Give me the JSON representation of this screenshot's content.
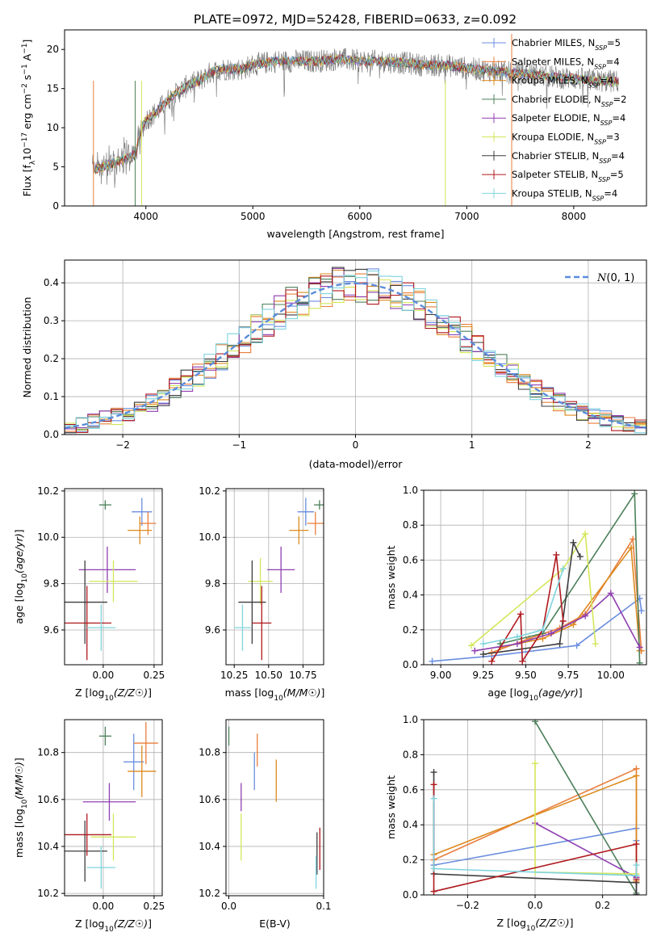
{
  "figure": {
    "title": "PLATE=0972, MJD=52428, FIBERID=0633, z=0.092"
  },
  "series_colors": [
    "#6b8ee0",
    "#e97e3c",
    "#dd8a1e",
    "#4c7f5a",
    "#8f3fb0",
    "#d4e65a",
    "#3d3d3d",
    "#b0191e",
    "#7fd4de"
  ],
  "chart_data": [
    {
      "type": "line",
      "xlabel": "wavelength [Angstrom, rest frame]",
      "ylabel": "Flux [f",
      "ylabel_rest": "10",
      "ylabel_units": "erg cm",
      "xlim": [
        3240,
        8680
      ],
      "ylim": [
        0,
        22.5
      ],
      "xticks": [
        4000,
        5000,
        6000,
        7000,
        8000
      ],
      "yticks": [
        0,
        5,
        10,
        15,
        20
      ],
      "grid": false,
      "legend_position": "right",
      "series": [
        {
          "name": "Chabrier MILES",
          "nssp": "5"
        },
        {
          "name": "Salpeter MILES",
          "nssp": "4"
        },
        {
          "name": "Kroupa MILES",
          "nssp": "4"
        },
        {
          "name": "Chabrier ELODIE",
          "nssp": "2"
        },
        {
          "name": "Salpeter ELODIE",
          "nssp": "4"
        },
        {
          "name": "Kroupa ELODIE",
          "nssp": "3"
        },
        {
          "name": "Chabrier STELIB",
          "nssp": "4"
        },
        {
          "name": "Salpeter STELIB",
          "nssp": "5"
        },
        {
          "name": "Kroupa STELIB",
          "nssp": "4"
        }
      ],
      "continuum": {
        "x": [
          3500,
          3600,
          3700,
          3800,
          3900,
          3950,
          4000,
          4100,
          4200,
          4300,
          4400,
          4500,
          4600,
          4700,
          4800,
          4900,
          5000,
          5200,
          5400,
          5600,
          5800,
          6000,
          6200,
          6400,
          6600,
          6800,
          7000,
          7200,
          7400,
          7600,
          7800,
          8000,
          8200,
          8400
        ],
        "y": [
          4.5,
          5.0,
          5.5,
          6.0,
          6.5,
          9.5,
          11.0,
          12.0,
          13.5,
          14.5,
          15.5,
          16.0,
          17.0,
          17.5,
          17.5,
          17.5,
          18.0,
          18.5,
          18.5,
          18.5,
          18.8,
          18.5,
          18.5,
          18.3,
          18.0,
          18.0,
          17.6,
          17.3,
          17.0,
          16.8,
          16.5,
          16.3,
          16.0,
          15.9
        ]
      }
    },
    {
      "type": "histogram",
      "xlabel": "(data-model)/error",
      "ylabel": "Normed distribution",
      "xlim": [
        -2.5,
        2.5
      ],
      "ylim": [
        0,
        0.46
      ],
      "xticks": [
        -2,
        -1,
        0,
        1,
        2
      ],
      "yticks": [
        0.0,
        0.1,
        0.2,
        0.3,
        0.4
      ],
      "grid": true,
      "legend_position": "top-right",
      "reference_curve": "normal(0,1)",
      "legend_label": "N(0,1)",
      "bin_edges_start": -2.5,
      "bin_width": 0.1
    },
    {
      "type": "scatter",
      "xlabel": "Z [log10(Z/Z☉)]",
      "ylabel": "age  [log10(age/yr)]",
      "xlim": [
        -0.19,
        0.29
      ],
      "ylim": [
        9.45,
        10.21
      ],
      "xticks": [
        0.0,
        0.25
      ],
      "yticks": [
        9.6,
        9.8,
        10.0,
        10.2
      ],
      "grid": true,
      "points": [
        {
          "series": "Chabrier MILES",
          "x": 0.19,
          "xerr": 0.05,
          "y": 10.11,
          "yerr": 0.06
        },
        {
          "series": "Salpeter MILES",
          "x": 0.22,
          "xerr": 0.04,
          "y": 10.06,
          "yerr": 0.05
        },
        {
          "series": "Kroupa MILES",
          "x": 0.18,
          "xerr": 0.06,
          "y": 10.03,
          "yerr": 0.06
        },
        {
          "series": "Chabrier ELODIE",
          "x": 0.01,
          "xerr": 0.03,
          "y": 10.14,
          "yerr": 0.02
        },
        {
          "series": "Salpeter ELODIE",
          "x": 0.02,
          "xerr": 0.14,
          "y": 9.86,
          "yerr": 0.1
        },
        {
          "series": "Kroupa ELODIE",
          "x": 0.05,
          "xerr": 0.12,
          "y": 9.81,
          "yerr": 0.09
        },
        {
          "series": "Chabrier STELIB",
          "x": -0.09,
          "xerr": 0.11,
          "y": 9.72,
          "yerr": 0.18
        },
        {
          "series": "Salpeter STELIB",
          "x": -0.08,
          "xerr": 0.12,
          "y": 9.63,
          "yerr": 0.16
        },
        {
          "series": "Kroupa STELIB",
          "x": -0.01,
          "xerr": 0.07,
          "y": 9.61,
          "yerr": 0.1
        }
      ]
    },
    {
      "type": "scatter",
      "xlabel": "mass [log10(M/M☉)]",
      "ylabel": "",
      "xlim": [
        10.19,
        10.9
      ],
      "ylim": [
        9.45,
        10.21
      ],
      "xticks": [
        10.25,
        10.5,
        10.75
      ],
      "yticks": [
        9.6,
        9.8,
        10.0,
        10.2
      ],
      "grid": true,
      "points": [
        {
          "series": "Chabrier MILES",
          "x": 10.77,
          "xerr": 0.06,
          "y": 10.11,
          "yerr": 0.06
        },
        {
          "series": "Salpeter MILES",
          "x": 10.84,
          "xerr": 0.06,
          "y": 10.06,
          "yerr": 0.05
        },
        {
          "series": "Kroupa MILES",
          "x": 10.72,
          "xerr": 0.07,
          "y": 10.03,
          "yerr": 0.06
        },
        {
          "series": "Chabrier ELODIE",
          "x": 10.87,
          "xerr": 0.04,
          "y": 10.14,
          "yerr": 0.02
        },
        {
          "series": "Salpeter ELODIE",
          "x": 10.59,
          "xerr": 0.1,
          "y": 9.86,
          "yerr": 0.1
        },
        {
          "series": "Kroupa ELODIE",
          "x": 10.44,
          "xerr": 0.09,
          "y": 9.81,
          "yerr": 0.1
        },
        {
          "series": "Chabrier STELIB",
          "x": 10.38,
          "xerr": 0.1,
          "y": 9.72,
          "yerr": 0.18
        },
        {
          "series": "Salpeter STELIB",
          "x": 10.45,
          "xerr": 0.07,
          "y": 9.63,
          "yerr": 0.16
        },
        {
          "series": "Kroupa STELIB",
          "x": 10.31,
          "xerr": 0.06,
          "y": 9.61,
          "yerr": 0.1
        }
      ]
    },
    {
      "type": "line",
      "xlabel": "age  [log10(age/yr)]",
      "ylabel": "mass weight",
      "xlim": [
        8.9,
        10.21
      ],
      "ylim": [
        0,
        1
      ],
      "xticks": [
        9.0,
        9.25,
        9.5,
        9.75,
        10.0
      ],
      "yticks": [
        0.0,
        0.2,
        0.4,
        0.6,
        0.8,
        1.0
      ],
      "grid": true,
      "series": [
        {
          "name": "Chabrier MILES",
          "x": [
            8.95,
            9.3,
            9.8,
            10.17,
            10.18
          ],
          "y": [
            0.02,
            0.05,
            0.11,
            0.38,
            0.31
          ]
        },
        {
          "name": "Salpeter MILES",
          "x": [
            9.3,
            9.52,
            9.7,
            9.85,
            10.13,
            10.18
          ],
          "y": [
            0.07,
            0.15,
            0.21,
            0.29,
            0.72,
            0.08
          ]
        },
        {
          "name": "Kroupa MILES",
          "x": [
            9.35,
            9.6,
            9.78,
            10.12,
            10.17
          ],
          "y": [
            0.1,
            0.15,
            0.23,
            0.67,
            0.08
          ]
        },
        {
          "name": "Chabrier ELODIE",
          "x": [
            9.35,
            9.6,
            10.14,
            10.17
          ],
          "y": [
            0.12,
            0.18,
            0.98,
            0.01
          ]
        },
        {
          "name": "Salpeter ELODIE",
          "x": [
            9.2,
            9.45,
            9.65,
            9.85,
            10.0,
            10.17
          ],
          "y": [
            0.08,
            0.12,
            0.18,
            0.28,
            0.41,
            0.1
          ]
        },
        {
          "name": "Kroupa ELODIE",
          "x": [
            9.18,
            9.72,
            9.85,
            9.91
          ],
          "y": [
            0.11,
            0.55,
            0.75,
            0.12
          ]
        },
        {
          "name": "Chabrier STELIB",
          "x": [
            9.25,
            9.7,
            9.78,
            9.82
          ],
          "y": [
            0.06,
            0.12,
            0.7,
            0.62
          ]
        },
        {
          "name": "Salpeter STELIB",
          "x": [
            9.3,
            9.47,
            9.48,
            9.6,
            9.68,
            9.72
          ],
          "y": [
            0.02,
            0.29,
            0.02,
            0.2,
            0.63,
            0.25
          ]
        },
        {
          "name": "Kroupa STELIB",
          "x": [
            9.25,
            9.45,
            9.6,
            9.72
          ],
          "y": [
            0.12,
            0.16,
            0.2,
            0.55
          ]
        }
      ]
    },
    {
      "type": "scatter",
      "xlabel": "Z [log10(Z/Z☉)]",
      "ylabel": "mass [log10(M/M☉)]",
      "xlim": [
        -0.19,
        0.29
      ],
      "ylim": [
        10.19,
        10.94
      ],
      "xticks": [
        0.0,
        0.25
      ],
      "yticks": [
        10.2,
        10.4,
        10.6,
        10.8
      ],
      "grid": true,
      "points": [
        {
          "series": "Chabrier MILES",
          "x": 0.15,
          "xerr": 0.05,
          "y": 10.76,
          "yerr": 0.12
        },
        {
          "series": "Salpeter MILES",
          "x": 0.21,
          "xerr": 0.06,
          "y": 10.84,
          "yerr": 0.09
        },
        {
          "series": "Kroupa MILES",
          "x": 0.19,
          "xerr": 0.07,
          "y": 10.72,
          "yerr": 0.11
        },
        {
          "series": "Chabrier ELODIE",
          "x": 0.01,
          "xerr": 0.03,
          "y": 10.87,
          "yerr": 0.04
        },
        {
          "series": "Salpeter ELODIE",
          "x": 0.03,
          "xerr": 0.13,
          "y": 10.59,
          "yerr": 0.08
        },
        {
          "series": "Kroupa ELODIE",
          "x": 0.05,
          "xerr": 0.11,
          "y": 10.44,
          "yerr": 0.1
        },
        {
          "series": "Chabrier STELIB",
          "x": -0.09,
          "xerr": 0.11,
          "y": 10.38,
          "yerr": 0.13
        },
        {
          "series": "Salpeter STELIB",
          "x": -0.08,
          "xerr": 0.12,
          "y": 10.45,
          "yerr": 0.09
        },
        {
          "series": "Kroupa STELIB",
          "x": -0.01,
          "xerr": 0.07,
          "y": 10.31,
          "yerr": 0.09
        }
      ]
    },
    {
      "type": "scatter",
      "xlabel": "E(B-V)",
      "ylabel": "",
      "xlim": [
        -0.003,
        0.1
      ],
      "ylim": [
        10.19,
        10.94
      ],
      "xticks": [
        0.0,
        0.1
      ],
      "yticks": [
        10.2,
        10.4,
        10.6,
        10.8
      ],
      "grid": true,
      "points": [
        {
          "series": "Chabrier MILES",
          "x": 0.027,
          "xerr": 0,
          "y": 10.72,
          "yerr": 0.08
        },
        {
          "series": "Salpeter MILES",
          "x": 0.03,
          "xerr": 0,
          "y": 10.81,
          "yerr": 0.07
        },
        {
          "series": "Kroupa MILES",
          "x": 0.05,
          "xerr": 0,
          "y": 10.68,
          "yerr": 0.09
        },
        {
          "series": "Chabrier ELODIE",
          "x": 0.0,
          "xerr": 0,
          "y": 10.87,
          "yerr": 0.04
        },
        {
          "series": "Salpeter ELODIE",
          "x": 0.013,
          "xerr": 0,
          "y": 10.61,
          "yerr": 0.06
        },
        {
          "series": "Kroupa ELODIE",
          "x": 0.013,
          "xerr": 0,
          "y": 10.44,
          "yerr": 0.1
        },
        {
          "series": "Chabrier STELIB",
          "x": 0.093,
          "xerr": 0,
          "y": 10.37,
          "yerr": 0.09
        },
        {
          "series": "Salpeter STELIB",
          "x": 0.096,
          "xerr": 0,
          "y": 10.39,
          "yerr": 0.09
        },
        {
          "series": "Kroupa STELIB",
          "x": 0.092,
          "xerr": 0,
          "y": 10.29,
          "yerr": 0.07
        }
      ]
    },
    {
      "type": "line",
      "xlabel": "Z [log10(Z/Z☉)]",
      "ylabel": "mass weight",
      "xlim": [
        -0.33,
        0.33
      ],
      "ylim": [
        0,
        1
      ],
      "xticks": [
        -0.2,
        0.0,
        0.2
      ],
      "yticks": [
        0.0,
        0.2,
        0.4,
        0.6,
        0.8,
        1.0
      ],
      "grid": true,
      "series": [
        {
          "name": "Chabrier MILES",
          "x": [
            -0.3,
            0.3,
            0.3
          ],
          "y": [
            0.17,
            0.38,
            0.31
          ]
        },
        {
          "name": "Salpeter MILES",
          "x": [
            -0.3,
            0.3,
            0.3
          ],
          "y": [
            0.2,
            0.72,
            0.08
          ]
        },
        {
          "name": "Kroupa MILES",
          "x": [
            -0.3,
            0.3,
            0.3
          ],
          "y": [
            0.23,
            0.68,
            0.08
          ]
        },
        {
          "name": "Chabrier ELODIE",
          "x": [
            0.0,
            0.3,
            0.3
          ],
          "y": [
            0.99,
            0.01,
            0.0
          ]
        },
        {
          "name": "Salpeter ELODIE",
          "x": [
            0.0,
            0.3,
            0.3
          ],
          "y": [
            0.41,
            0.1,
            0.0
          ]
        },
        {
          "name": "Kroupa ELODIE",
          "x": [
            0.0,
            0.0,
            0.3
          ],
          "y": [
            0.75,
            0.13,
            0.12
          ]
        },
        {
          "name": "Chabrier STELIB",
          "x": [
            -0.3,
            -0.3,
            0.3,
            0.3
          ],
          "y": [
            0.7,
            0.12,
            0.07,
            0.0
          ]
        },
        {
          "name": "Salpeter STELIB",
          "x": [
            -0.3,
            -0.3,
            0.3,
            0.3
          ],
          "y": [
            0.63,
            0.02,
            0.29,
            0.09
          ]
        },
        {
          "name": "Kroupa STELIB",
          "x": [
            -0.3,
            -0.3,
            0.3,
            0.3
          ],
          "y": [
            0.55,
            0.15,
            0.11,
            0.17
          ]
        }
      ]
    }
  ]
}
